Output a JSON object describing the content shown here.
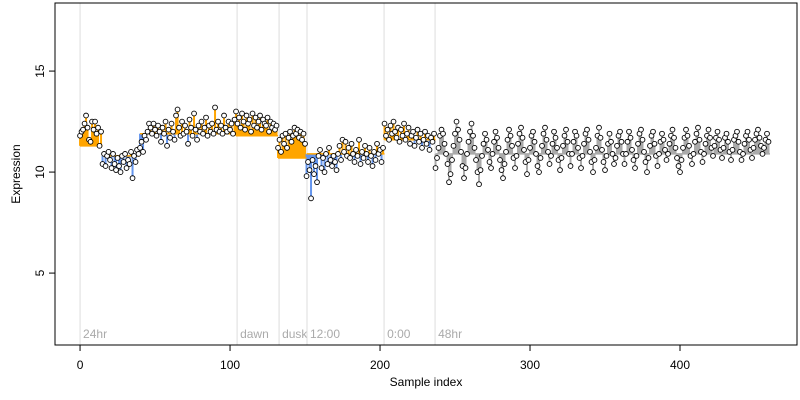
{
  "chart_data": {
    "type": "scatter",
    "xlabel": "Sample index",
    "ylabel": "Expression",
    "xlim": [
      -16.7,
      478
    ],
    "ylim": [
      1.44,
      18.37
    ],
    "xticks": [
      0,
      100,
      200,
      300,
      400
    ],
    "yticks": [
      5,
      10,
      15
    ],
    "above_color": "#ffa500",
    "below_color": "#6495ed",
    "point_color": "#000000",
    "annotations": [
      {
        "label": "24hr",
        "x": 0
      },
      {
        "label": "dawn",
        "x": 104.7
      },
      {
        "label": "dusk",
        "x": 132.7
      },
      {
        "label": "12:00",
        "x": 151.3
      },
      {
        "label": "0:00",
        "x": 202.7
      },
      {
        "label": "48hr",
        "x": 236.7
      }
    ],
    "fit_segments": [
      {
        "start": 0,
        "end": 15,
        "level": 11.3
      },
      {
        "start": 15,
        "end": 40,
        "level": 10.8
      },
      {
        "start": 40,
        "end": 104,
        "level": 11.9
      },
      {
        "start": 104,
        "end": 132,
        "level": 11.8
      },
      {
        "start": 132,
        "end": 151,
        "level": 10.7
      },
      {
        "start": 151,
        "end": 203,
        "level": 10.9
      },
      {
        "start": 203,
        "end": 237,
        "level": 11.6
      },
      {
        "start": 237,
        "end": 460,
        "level": 10.9,
        "color": "#aaaaaa"
      }
    ],
    "values": [
      11.8,
      12.0,
      12.1,
      12.4,
      12.8,
      12.2,
      11.6,
      11.5,
      12.5,
      12.1,
      12.5,
      11.9,
      12.2,
      11.3,
      12.0,
      10.4,
      10.9,
      10.3,
      10.8,
      11.0,
      10.6,
      10.2,
      10.9,
      10.4,
      10.1,
      10.7,
      10.3,
      10.0,
      10.8,
      10.5,
      10.9,
      10.2,
      10.6,
      10.4,
      11.0,
      9.7,
      10.8,
      10.5,
      11.1,
      10.9,
      11.2,
      11.5,
      11.0,
      11.8,
      11.6,
      12.0,
      12.4,
      12.2,
      11.9,
      12.4,
      12.1,
      11.8,
      12.3,
      12.0,
      11.5,
      12.2,
      11.9,
      12.5,
      11.3,
      12.1,
      11.7,
      12.4,
      12.0,
      11.6,
      12.8,
      13.1,
      12.2,
      11.8,
      12.5,
      11.9,
      12.3,
      12.0,
      11.4,
      12.6,
      12.2,
      11.8,
      12.9,
      12.1,
      11.6,
      12.3,
      12.0,
      12.5,
      11.9,
      12.2,
      12.7,
      11.8,
      12.3,
      12.0,
      12.4,
      11.9,
      13.2,
      12.1,
      12.5,
      12.0,
      12.3,
      11.9,
      12.8,
      12.2,
      12.0,
      12.5,
      12.1,
      12.4,
      11.9,
      12.6,
      13.0,
      12.4,
      12.7,
      12.2,
      12.9,
      12.5,
      12.1,
      12.8,
      12.4,
      12.6,
      12.0,
      12.9,
      12.3,
      12.7,
      12.2,
      12.5,
      12.8,
      12.1,
      12.6,
      12.4,
      12.3,
      12.7,
      12.0,
      12.5,
      12.2,
      12.4,
      12.1,
      12.3,
      11.2,
      11.6,
      11.0,
      11.8,
      11.4,
      11.9,
      11.2,
      11.7,
      12.0,
      11.5,
      11.8,
      12.2,
      11.9,
      12.1,
      11.7,
      12.0,
      11.6,
      11.9,
      11.4,
      9.8,
      10.5,
      10.1,
      8.7,
      10.6,
      9.9,
      10.3,
      9.5,
      10.8,
      11.1,
      10.2,
      10.7,
      10.0,
      10.9,
      10.4,
      11.2,
      10.6,
      10.3,
      10.8,
      10.5,
      10.1,
      10.9,
      11.3,
      10.6,
      11.6,
      11.0,
      11.5,
      10.8,
      11.2,
      10.7,
      11.4,
      10.9,
      10.5,
      11.1,
      10.8,
      11.6,
      10.4,
      11.0,
      10.7,
      11.3,
      10.9,
      10.5,
      11.2,
      10.8,
      10.3,
      11.0,
      10.6,
      11.4,
      10.9,
      11.1,
      10.5,
      11.2,
      12.4,
      11.8,
      12.1,
      11.6,
      12.3,
      11.9,
      12.5,
      12.0,
      11.7,
      12.2,
      11.5,
      12.1,
      11.8,
      12.4,
      11.6,
      11.9,
      12.2,
      11.4,
      11.8,
      12.0,
      11.3,
      11.7,
      12.1,
      11.5,
      11.9,
      11.2,
      11.6,
      12.0,
      11.4,
      11.8,
      11.1,
      11.7,
      11.5,
      11.9,
      10.2,
      10.7,
      11.2,
      11.8,
      12.1,
      11.9,
      11.4,
      10.9,
      10.4,
      9.5,
      9.9,
      10.6,
      11.3,
      11.9,
      12.5,
      12.1,
      11.6,
      11.0,
      10.3,
      9.7,
      10.2,
      10.9,
      11.5,
      12.0,
      12.4,
      11.8,
      11.2,
      10.6,
      10.0,
      9.4,
      10.1,
      10.8,
      11.4,
      11.9,
      11.6,
      11.1,
      10.5,
      10.2,
      10.9,
      11.5,
      12.0,
      11.7,
      11.2,
      10.6,
      10.1,
      9.7,
      10.4,
      11.0,
      11.6,
      12.1,
      11.8,
      11.3,
      10.7,
      10.2,
      10.8,
      11.4,
      11.9,
      12.2,
      11.7,
      11.1,
      10.5,
      9.9,
      10.6,
      11.2,
      11.8,
      12.0,
      11.5,
      10.9,
      10.3,
      10.0,
      10.7,
      11.3,
      11.9,
      12.2,
      11.6,
      11.0,
      10.4,
      10.8,
      11.4,
      12.0,
      11.7,
      11.2,
      10.6,
      10.1,
      10.7,
      11.3,
      11.8,
      12.1,
      11.5,
      10.9,
      10.3,
      10.9,
      11.5,
      12.0,
      11.8,
      11.2,
      10.7,
      10.2,
      10.8,
      11.4,
      11.9,
      12.1,
      11.6,
      11.0,
      10.5,
      10.0,
      10.6,
      11.2,
      11.8,
      12.2,
      11.7,
      11.1,
      10.5,
      10.1,
      10.8,
      11.4,
      11.9,
      11.5,
      10.9,
      10.4,
      10.7,
      11.3,
      11.8,
      12.0,
      11.5,
      10.9,
      10.4,
      10.9,
      11.5,
      12.0,
      11.7,
      11.1,
      10.6,
      10.2,
      10.8,
      11.4,
      11.9,
      12.1,
      11.6,
      11.0,
      10.5,
      10.0,
      10.7,
      11.3,
      11.8,
      12.0,
      11.4,
      10.8,
      10.3,
      10.9,
      11.5,
      11.9,
      11.6,
      11.1,
      10.6,
      10.9,
      11.4,
      11.8,
      12.1,
      11.7,
      11.2,
      10.7,
      10.3,
      10.0,
      10.6,
      11.2,
      11.7,
      12.1,
      11.8,
      11.3,
      10.8,
      10.4,
      10.9,
      11.5,
      11.9,
      12.2,
      11.6,
      11.0,
      10.5,
      10.9,
      11.4,
      11.8,
      12.1,
      11.7,
      11.2,
      10.8,
      11.3,
      11.7,
      12.0,
      11.6,
      11.1,
      10.7,
      11.2,
      11.7,
      11.9,
      11.5,
      11.0,
      10.6,
      11.1,
      11.6,
      11.8,
      12.0,
      11.5,
      11.0,
      10.6,
      10.9,
      11.4,
      11.8,
      12.0,
      11.6,
      11.1,
      10.7,
      11.2,
      11.6,
      11.9,
      12.1,
      11.7,
      11.3,
      10.9,
      11.2,
      11.6,
      11.9,
      11.5
    ]
  }
}
